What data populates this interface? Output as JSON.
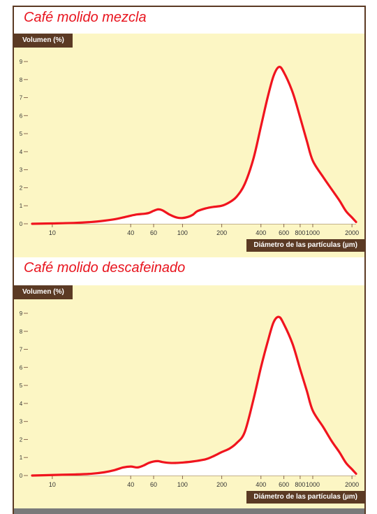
{
  "chart_data": [
    {
      "type": "line",
      "title": "Café molido mezcla",
      "ylabel": "Volumen (%)",
      "xlabel": "Diámetro de las partículas (µm)",
      "xscale": "log",
      "xlim": [
        7,
        2150
      ],
      "ylim": [
        0,
        9
      ],
      "yticks": [
        "0",
        "1",
        "2",
        "3",
        "4",
        "5",
        "6",
        "7",
        "8",
        "9"
      ],
      "xticks": [
        "10",
        "40",
        "60",
        "100",
        "200",
        "400",
        "600",
        "800",
        "1000",
        "2000"
      ],
      "color": "#f0141e",
      "series": [
        {
          "x": [
            7,
            10,
            15,
            20,
            25,
            30,
            35,
            40,
            45,
            50,
            55,
            60,
            65,
            70,
            80,
            90,
            100,
            110,
            120,
            130,
            150,
            170,
            200,
            230,
            260,
            300,
            350,
            400,
            450,
            500,
            550,
            600,
            700,
            800,
            900,
            1000,
            1200,
            1400,
            1600,
            1800,
            2000,
            2150
          ],
          "y": [
            0.0,
            0.02,
            0.05,
            0.1,
            0.17,
            0.25,
            0.35,
            0.45,
            0.52,
            0.55,
            0.6,
            0.72,
            0.8,
            0.75,
            0.5,
            0.35,
            0.32,
            0.38,
            0.5,
            0.7,
            0.85,
            0.93,
            1.0,
            1.2,
            1.5,
            2.2,
            3.6,
            5.4,
            7.0,
            8.2,
            8.7,
            8.4,
            7.3,
            5.9,
            4.6,
            3.5,
            2.6,
            1.9,
            1.3,
            0.7,
            0.35,
            0.1
          ]
        }
      ]
    },
    {
      "type": "line",
      "title": "Café molido descafeinado",
      "ylabel": "Volumen (%)",
      "xlabel": "Diámetro de las partículas (µm)",
      "xscale": "log",
      "xlim": [
        7,
        2150
      ],
      "ylim": [
        0,
        9
      ],
      "yticks": [
        "0",
        "1",
        "2",
        "3",
        "4",
        "5",
        "6",
        "7",
        "8",
        "9"
      ],
      "xticks": [
        "10",
        "40",
        "60",
        "100",
        "200",
        "400",
        "600",
        "800",
        "1000",
        "2000"
      ],
      "color": "#f0141e",
      "series": [
        {
          "x": [
            7,
            10,
            15,
            20,
            25,
            30,
            35,
            40,
            45,
            50,
            55,
            60,
            65,
            70,
            80,
            90,
            100,
            120,
            150,
            170,
            200,
            230,
            260,
            300,
            350,
            400,
            450,
            500,
            550,
            600,
            700,
            800,
            900,
            1000,
            1200,
            1400,
            1600,
            1800,
            2000,
            2150
          ],
          "y": [
            0.0,
            0.03,
            0.06,
            0.1,
            0.18,
            0.3,
            0.45,
            0.5,
            0.45,
            0.55,
            0.7,
            0.78,
            0.8,
            0.75,
            0.7,
            0.7,
            0.72,
            0.78,
            0.9,
            1.05,
            1.3,
            1.5,
            1.8,
            2.4,
            4.2,
            6.0,
            7.4,
            8.5,
            8.8,
            8.4,
            7.3,
            5.9,
            4.7,
            3.6,
            2.7,
            1.9,
            1.3,
            0.7,
            0.35,
            0.1
          ]
        }
      ]
    }
  ]
}
